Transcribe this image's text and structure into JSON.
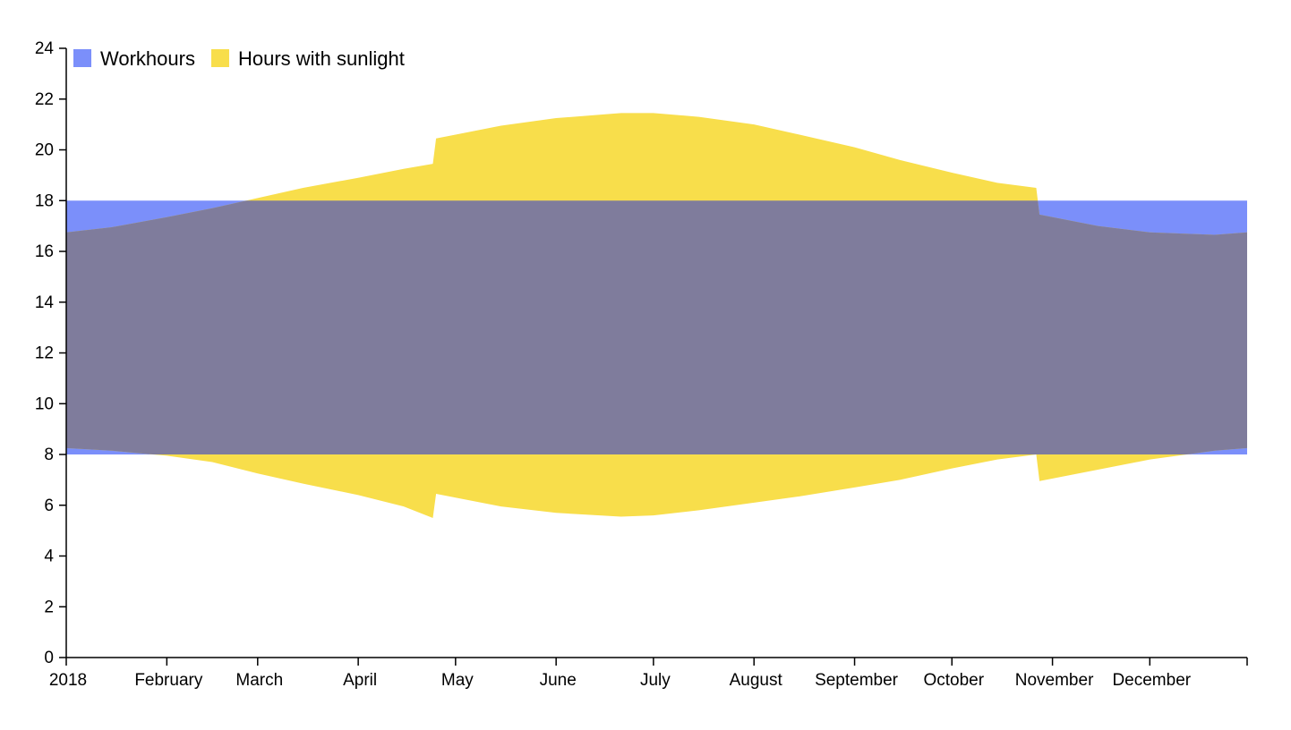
{
  "chart_data": {
    "type": "area",
    "title": "",
    "xlabel": "",
    "ylabel": "",
    "ylim": [
      0,
      24
    ],
    "y_ticks": [
      0,
      2,
      4,
      6,
      8,
      10,
      12,
      14,
      16,
      18,
      20,
      22,
      24
    ],
    "x_range": [
      "2018-01-01",
      "2018-12-31"
    ],
    "x_ticks": [
      {
        "date": "2018-01-01",
        "label": "2018"
      },
      {
        "date": "2018-02-01",
        "label": "February"
      },
      {
        "date": "2018-03-01",
        "label": "March"
      },
      {
        "date": "2018-04-01",
        "label": "April"
      },
      {
        "date": "2018-05-01",
        "label": "May"
      },
      {
        "date": "2018-06-01",
        "label": "June"
      },
      {
        "date": "2018-07-01",
        "label": "July"
      },
      {
        "date": "2018-08-01",
        "label": "August"
      },
      {
        "date": "2018-09-01",
        "label": "September"
      },
      {
        "date": "2018-10-01",
        "label": "October"
      },
      {
        "date": "2018-11-01",
        "label": "November"
      },
      {
        "date": "2018-12-01",
        "label": "December"
      },
      {
        "date": "2018-12-31",
        "label": ""
      }
    ],
    "legend_position": "top-left",
    "series": [
      {
        "name": "Workhours",
        "color": "#7b8ffa",
        "points": [
          {
            "date": "2018-01-01",
            "low": 8,
            "high": 18
          },
          {
            "date": "2018-12-31",
            "low": 8,
            "high": 18
          }
        ]
      },
      {
        "name": "Hours with sunlight",
        "color": "#f8de4b",
        "points": [
          {
            "date": "2018-01-01",
            "low": 8.25,
            "high": 16.75
          },
          {
            "date": "2018-01-15",
            "low": 8.15,
            "high": 16.95
          },
          {
            "date": "2018-02-01",
            "low": 7.95,
            "high": 17.35
          },
          {
            "date": "2018-02-15",
            "low": 7.7,
            "high": 17.7
          },
          {
            "date": "2018-03-01",
            "low": 7.25,
            "high": 18.1
          },
          {
            "date": "2018-03-15",
            "low": 6.85,
            "high": 18.5
          },
          {
            "date": "2018-04-01",
            "low": 6.4,
            "high": 18.9
          },
          {
            "date": "2018-04-15",
            "low": 5.95,
            "high": 19.25
          },
          {
            "date": "2018-04-24",
            "low": 5.5,
            "high": 19.45
          },
          {
            "date": "2018-04-25",
            "low": 6.45,
            "high": 20.45
          },
          {
            "date": "2018-05-01",
            "low": 6.3,
            "high": 20.6
          },
          {
            "date": "2018-05-15",
            "low": 5.95,
            "high": 20.95
          },
          {
            "date": "2018-06-01",
            "low": 5.7,
            "high": 21.25
          },
          {
            "date": "2018-06-21",
            "low": 5.55,
            "high": 21.45
          },
          {
            "date": "2018-07-01",
            "low": 5.6,
            "high": 21.45
          },
          {
            "date": "2018-07-15",
            "low": 5.8,
            "high": 21.3
          },
          {
            "date": "2018-08-01",
            "low": 6.1,
            "high": 21.0
          },
          {
            "date": "2018-08-15",
            "low": 6.35,
            "high": 20.6
          },
          {
            "date": "2018-09-01",
            "low": 6.7,
            "high": 20.1
          },
          {
            "date": "2018-09-15",
            "low": 7.0,
            "high": 19.6
          },
          {
            "date": "2018-10-01",
            "low": 7.45,
            "high": 19.1
          },
          {
            "date": "2018-10-15",
            "low": 7.8,
            "high": 18.7
          },
          {
            "date": "2018-10-27",
            "low": 8.0,
            "high": 18.5
          },
          {
            "date": "2018-10-28",
            "low": 6.95,
            "high": 17.45
          },
          {
            "date": "2018-11-15",
            "low": 7.4,
            "high": 17.0
          },
          {
            "date": "2018-12-01",
            "low": 7.8,
            "high": 16.75
          },
          {
            "date": "2018-12-21",
            "low": 8.15,
            "high": 16.65
          },
          {
            "date": "2018-12-31",
            "low": 8.25,
            "high": 16.75
          }
        ]
      }
    ],
    "overlap_color": "#7f7c9c"
  }
}
